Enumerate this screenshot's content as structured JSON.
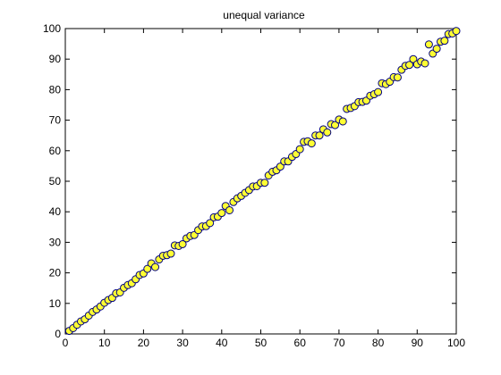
{
  "chart_data": {
    "type": "scatter",
    "title": "unequal variance",
    "xlabel": "",
    "ylabel": "",
    "xlim": [
      0,
      100
    ],
    "ylim": [
      0,
      100
    ],
    "xticks": [
      0,
      10,
      20,
      30,
      40,
      50,
      60,
      70,
      80,
      90,
      100
    ],
    "yticks": [
      0,
      10,
      20,
      30,
      40,
      50,
      60,
      70,
      80,
      90,
      100
    ],
    "grid": false,
    "marker_fill": "#ffff33",
    "marker_edge": "#000080",
    "series": [
      {
        "x": [
          1,
          2,
          3,
          4,
          5,
          6,
          7,
          8,
          9,
          10,
          11,
          12,
          13,
          14,
          15,
          16,
          17,
          18,
          19,
          20,
          21,
          22,
          23,
          24,
          25,
          26,
          27,
          28,
          29,
          30,
          31,
          32,
          33,
          34,
          35,
          36,
          37,
          38,
          39,
          40,
          41,
          42,
          43,
          44,
          45,
          46,
          47,
          48,
          49,
          50,
          51,
          52,
          53,
          54,
          55,
          56,
          57,
          58,
          59,
          60,
          61,
          62,
          63,
          64,
          65,
          66,
          67,
          68,
          69,
          70,
          71,
          72,
          73,
          74,
          75,
          76,
          77,
          78,
          79,
          80,
          81,
          82,
          83,
          84,
          85,
          86,
          87,
          88,
          89,
          90,
          91,
          92,
          93,
          94,
          95,
          96,
          97,
          98,
          99,
          100
        ],
        "y": [
          1.0,
          1.9,
          3.0,
          4.1,
          4.8,
          6.0,
          7.2,
          8.0,
          9.0,
          10.2,
          11.1,
          11.8,
          13.3,
          13.6,
          15.1,
          16.0,
          16.6,
          17.9,
          19.3,
          19.8,
          21.3,
          23.1,
          21.9,
          24.4,
          25.6,
          25.8,
          26.3,
          29.0,
          28.8,
          29.4,
          31.3,
          32.1,
          32.4,
          34.0,
          35.2,
          35.3,
          36.3,
          38.2,
          38.4,
          39.6,
          41.9,
          40.5,
          43.2,
          44.4,
          45.2,
          46.2,
          47.1,
          48.3,
          48.4,
          49.5,
          49.5,
          51.9,
          53.1,
          53.6,
          54.8,
          56.5,
          56.5,
          58.0,
          58.9,
          60.5,
          62.9,
          63.1,
          62.4,
          65.0,
          65.0,
          67.0,
          66.0,
          68.7,
          68.4,
          70.2,
          69.6,
          73.7,
          74.0,
          74.6,
          75.9,
          76.0,
          76.4,
          78.0,
          78.5,
          79.2,
          82.1,
          81.8,
          82.6,
          84.1,
          84.0,
          86.5,
          87.8,
          88.1,
          90.0,
          88.3,
          89.2,
          88.6,
          94.8,
          91.8,
          93.4,
          95.7,
          96.0,
          98.2,
          98.4,
          99.2
        ]
      }
    ]
  }
}
